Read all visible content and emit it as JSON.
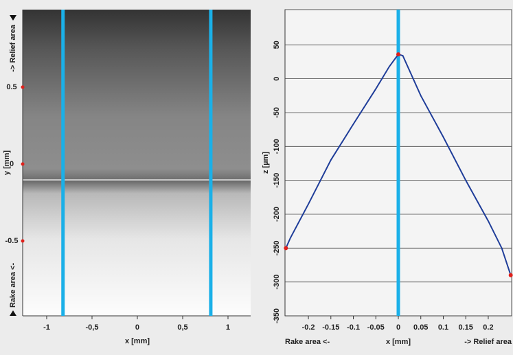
{
  "chart_data": [
    {
      "type": "image",
      "x_label": "x [mm]",
      "y_label": "y [mm]",
      "annotations": [
        "-> Relief area",
        "Rake area <-"
      ],
      "xlim": [
        -1.265,
        1.25
      ],
      "ylim": [
        -0.987,
        1.004
      ],
      "xticks": [
        -1,
        {
          "value": -0.5,
          "label": "-0,5"
        },
        0,
        {
          "value": 0.5,
          "label": "0,5"
        },
        1
      ],
      "yticks": [
        0.5,
        0,
        -0.5
      ],
      "vlines": [
        -0.82,
        0.81
      ],
      "vline_color": "#1ab0e8"
    },
    {
      "type": "line",
      "x_label": "x [mm]",
      "y_label": "z [µm]",
      "annotations": [
        "Rake area <-",
        "-> Relief area"
      ],
      "xlim": [
        -0.252,
        0.252
      ],
      "ylim": [
        -350,
        102
      ],
      "xticks": [
        -0.2,
        -0.15,
        -0.1,
        -0.05,
        0,
        0.05,
        0.1,
        0.15,
        0.2
      ],
      "yticks": [
        50,
        0,
        -50,
        -100,
        -150,
        -200,
        -250,
        -300,
        -350
      ],
      "grid": true,
      "x": [
        -0.25,
        -0.24,
        -0.2,
        -0.15,
        -0.1,
        -0.05,
        -0.02,
        0,
        0.01,
        0.05,
        0.1,
        0.15,
        0.2,
        0.23,
        0.25
      ],
      "series": [
        {
          "name": "z",
          "color": "#1f3d99",
          "values": [
            -250,
            -235,
            -185,
            -120,
            -67,
            -15,
            18,
            36,
            34,
            -25,
            -86,
            -150,
            -210,
            -250,
            -290
          ]
        }
      ],
      "vlines": [
        0
      ],
      "vline_color": "#1ab0e8"
    }
  ]
}
